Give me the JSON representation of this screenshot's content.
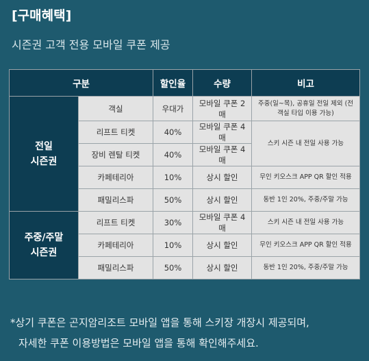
{
  "heading": "[구매혜택]",
  "subheading": "시즌권 고객 전용 모바일 쿠폰 제공",
  "table": {
    "headers": {
      "category": "구분",
      "discount": "할인율",
      "quantity": "수량",
      "note": "비고"
    },
    "group_full": {
      "line1": "전일",
      "line2": "시즌권"
    },
    "group_weekend": {
      "line1": "주중/주말",
      "line2": "시즌권"
    },
    "rows": [
      {
        "item": "객실",
        "discount": "우대가",
        "quantity": "모바일 쿠폰 2매",
        "note": "주중(일~목), 공휴일 전일 제외 (전 객실 타입 이용 가능)"
      },
      {
        "item": "리프트 티켓",
        "discount": "40%",
        "quantity": "모바일 쿠폰 4매",
        "note": "스키 시즌 내 전일 사용 가능"
      },
      {
        "item": "장비 렌탈 티켓",
        "discount": "40%",
        "quantity": "모바일 쿠폰 4매"
      },
      {
        "item": "카페테리아",
        "discount": "10%",
        "quantity": "상시 할인",
        "note": "무인 키오스크 APP QR 할인 적용"
      },
      {
        "item": "패밀리스파",
        "discount": "50%",
        "quantity": "상시 할인",
        "note": "동반 1인 20%, 주중/주말 가능"
      },
      {
        "item": "리프트 티켓",
        "discount": "30%",
        "quantity": "모바일 쿠폰 4매",
        "note": "스키 시즌 내 전일 사용 가능"
      },
      {
        "item": "카페테리아",
        "discount": "10%",
        "quantity": "상시 할인",
        "note": "무인 키오스크 APP QR 할인 적용"
      },
      {
        "item": "패밀리스파",
        "discount": "50%",
        "quantity": "상시 할인",
        "note": "동반 1인 20%, 주중/주말 가능"
      }
    ]
  },
  "footnote": {
    "line1": "*상기 쿠폰은 곤지암리조트 모바일 앱을 통해 스키장 개장시 제공되며,",
    "line2": "자세한 쿠폰 이용방법은 모바일 앱을 통해 확인해주세요."
  },
  "colors": {
    "background": "#1e5a6e",
    "header_cell": "#0d3d52",
    "body_cell": "#e3e3e3"
  }
}
